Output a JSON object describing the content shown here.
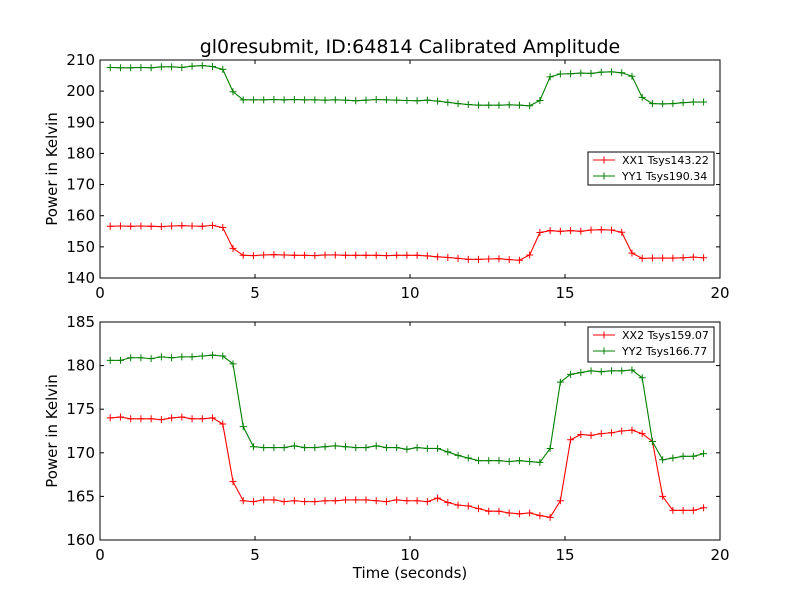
{
  "chart_data": {
    "title": "gl0resubmit, ID:64814 Calibrated Amplitude",
    "x": [
      0.33,
      0.66,
      0.99,
      1.32,
      1.65,
      1.98,
      2.31,
      2.64,
      2.97,
      3.3,
      3.63,
      3.96,
      4.29,
      4.62,
      4.95,
      5.28,
      5.61,
      5.94,
      6.27,
      6.6,
      6.93,
      7.26,
      7.59,
      7.92,
      8.25,
      8.58,
      8.91,
      9.24,
      9.57,
      9.9,
      10.23,
      10.56,
      10.89,
      11.22,
      11.55,
      11.88,
      12.21,
      12.54,
      12.87,
      13.2,
      13.53,
      13.86,
      14.19,
      14.52,
      14.85,
      15.18,
      15.51,
      15.84,
      16.17,
      16.5,
      16.83,
      17.16,
      17.49,
      17.82,
      18.15,
      18.48,
      18.81,
      19.14,
      19.47
    ],
    "charts": [
      {
        "type": "line",
        "xlabel": "",
        "ylabel": "Power in Kelvin",
        "xlim": [
          0,
          20
        ],
        "ylim": [
          140,
          210
        ],
        "xticks": [
          0,
          5,
          10,
          15,
          20
        ],
        "yticks": [
          140,
          150,
          160,
          170,
          180,
          190,
          200,
          210
        ],
        "grid": false,
        "legend_position": "center-right",
        "series": [
          {
            "name": "XX1 Tsys143.22",
            "color": "#ff0000",
            "values": [
              156.6,
              156.7,
              156.6,
              156.7,
              156.6,
              156.5,
              156.7,
              156.8,
              156.7,
              156.6,
              156.9,
              156.2,
              149.5,
              147.3,
              147.2,
              147.4,
              147.5,
              147.4,
              147.3,
              147.3,
              147.2,
              147.4,
              147.4,
              147.3,
              147.3,
              147.3,
              147.3,
              147.2,
              147.3,
              147.3,
              147.3,
              147.1,
              146.8,
              146.6,
              146.3,
              146.0,
              146.0,
              146.1,
              146.2,
              145.9,
              145.7,
              147.4,
              154.6,
              155.2,
              155.0,
              155.2,
              155.0,
              155.4,
              155.5,
              155.4,
              154.7,
              148.0,
              146.3,
              146.4,
              146.4,
              146.4,
              146.5,
              146.7,
              146.5
            ]
          },
          {
            "name": "YY1 Tsys190.34",
            "color": "#008000",
            "values": [
              207.6,
              207.5,
              207.5,
              207.6,
              207.5,
              207.8,
              207.8,
              207.6,
              208.0,
              208.2,
              207.9,
              207.0,
              199.8,
              197.2,
              197.2,
              197.2,
              197.3,
              197.2,
              197.3,
              197.2,
              197.2,
              197.1,
              197.2,
              197.1,
              196.9,
              197.1,
              197.3,
              197.2,
              197.1,
              197.0,
              196.9,
              197.1,
              196.8,
              196.4,
              196.0,
              195.7,
              195.5,
              195.5,
              195.5,
              195.6,
              195.5,
              195.3,
              197.0,
              204.6,
              205.5,
              205.6,
              205.8,
              205.7,
              206.1,
              206.2,
              205.9,
              204.8,
              198.0,
              196.0,
              195.9,
              196.0,
              196.3,
              196.5,
              196.5
            ]
          }
        ]
      },
      {
        "type": "line",
        "xlabel": "Time (seconds)",
        "ylabel": "Power in Kelvin",
        "xlim": [
          0,
          20
        ],
        "ylim": [
          160,
          185
        ],
        "xticks": [
          0,
          5,
          10,
          15,
          20
        ],
        "yticks": [
          160,
          165,
          170,
          175,
          180,
          185
        ],
        "grid": false,
        "legend_position": "top-right",
        "series": [
          {
            "name": "XX2 Tsys159.07",
            "color": "#ff0000",
            "values": [
              174.0,
              174.1,
              173.9,
              173.9,
              173.9,
              173.8,
              174.0,
              174.1,
              173.9,
              173.9,
              174.0,
              173.3,
              166.7,
              164.5,
              164.4,
              164.6,
              164.6,
              164.4,
              164.5,
              164.4,
              164.4,
              164.5,
              164.5,
              164.6,
              164.6,
              164.6,
              164.5,
              164.4,
              164.6,
              164.5,
              164.5,
              164.4,
              164.8,
              164.3,
              164.0,
              163.9,
              163.6,
              163.3,
              163.3,
              163.1,
              163.0,
              163.1,
              162.8,
              162.6,
              164.5,
              171.5,
              172.1,
              172.0,
              172.2,
              172.3,
              172.5,
              172.6,
              172.2,
              171.3,
              165.0,
              163.4,
              163.4,
              163.4,
              163.7
            ]
          },
          {
            "name": "YY2 Tsys166.77",
            "color": "#008000",
            "values": [
              180.6,
              180.6,
              180.9,
              180.9,
              180.8,
              181.0,
              180.9,
              181.0,
              181.0,
              181.1,
              181.2,
              181.1,
              180.2,
              173.0,
              170.7,
              170.6,
              170.6,
              170.6,
              170.8,
              170.6,
              170.6,
              170.7,
              170.8,
              170.7,
              170.6,
              170.6,
              170.8,
              170.6,
              170.6,
              170.4,
              170.6,
              170.5,
              170.5,
              170.1,
              169.7,
              169.4,
              169.1,
              169.1,
              169.1,
              169.0,
              169.1,
              169.0,
              168.9,
              170.5,
              178.1,
              179.0,
              179.2,
              179.4,
              179.3,
              179.4,
              179.4,
              179.5,
              178.6,
              171.3,
              169.2,
              169.4,
              169.6,
              169.6,
              169.9
            ]
          }
        ]
      }
    ]
  }
}
